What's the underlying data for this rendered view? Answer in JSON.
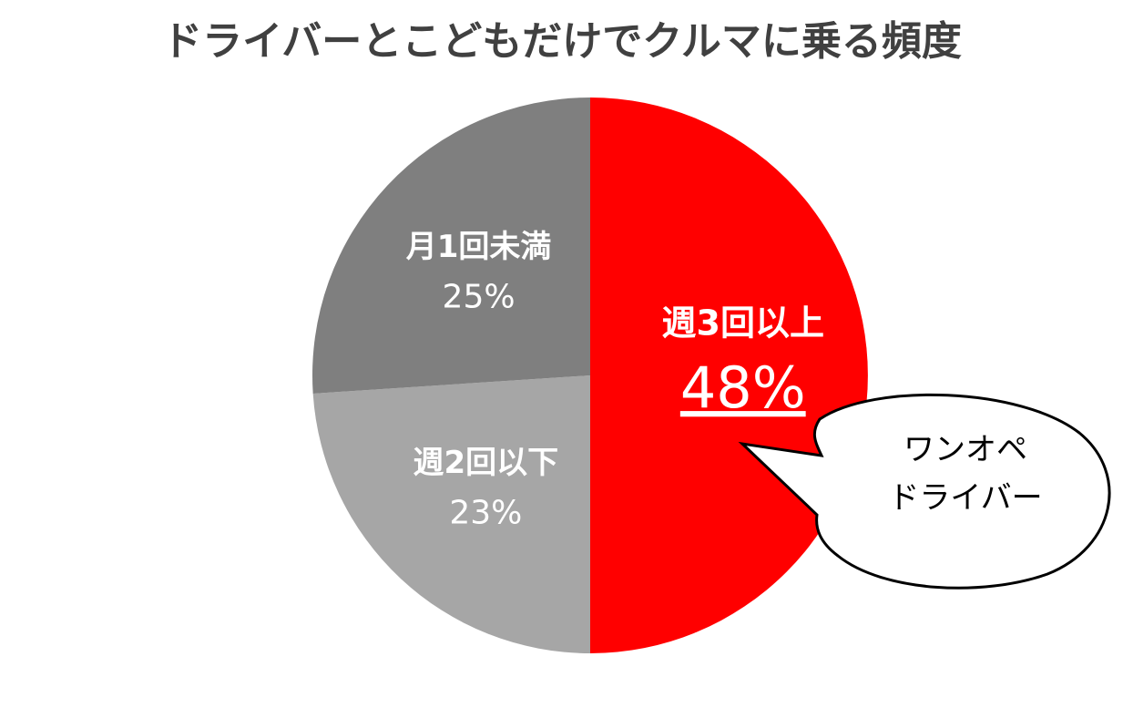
{
  "chart_data": {
    "type": "pie",
    "title": "ドライバーとこどもだけでクルマに乗る頻度",
    "categories": [
      "週3回以上",
      "週2回以下",
      "月1回未満"
    ],
    "values": [
      48,
      23,
      25
    ],
    "value_labels": [
      "48%",
      "23%",
      "25%"
    ],
    "colors": [
      "#ff0000",
      "#a6a6a6",
      "#7f7f7f"
    ],
    "annotation": [
      "ワンオペ",
      "ドライバー"
    ]
  }
}
